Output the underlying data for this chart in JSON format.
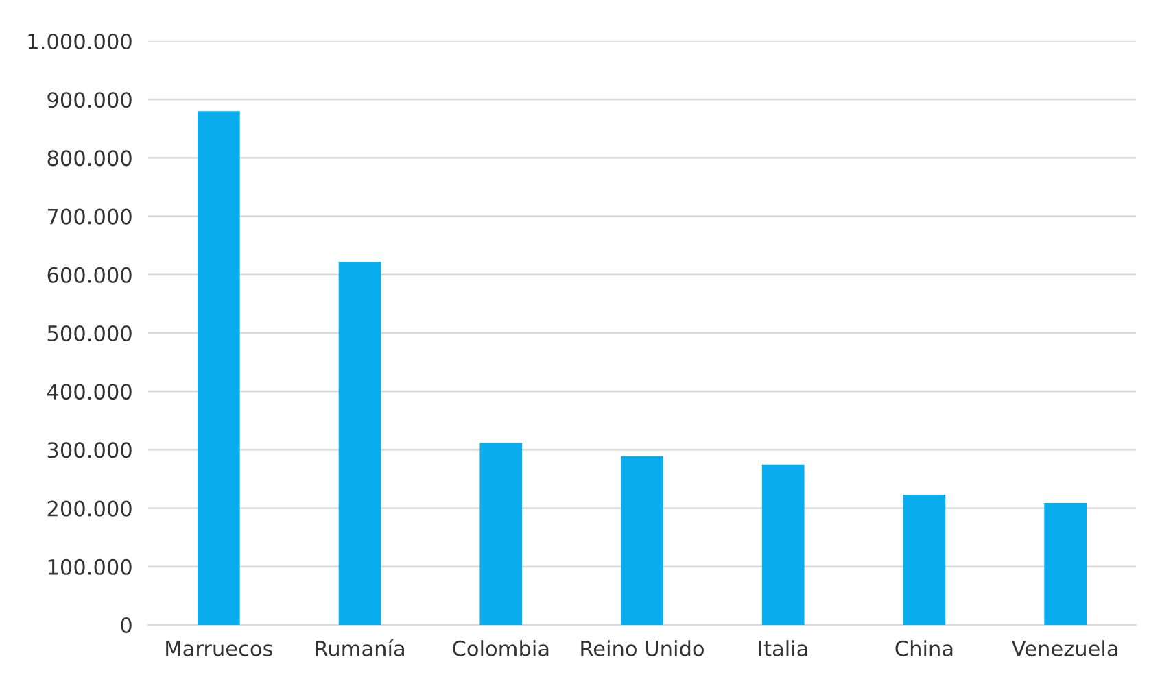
{
  "chart_data": {
    "type": "bar",
    "categories": [
      "Marruecos",
      "Rumanía",
      "Colombia",
      "Reino Unido",
      "Italia",
      "China",
      "Venezuela"
    ],
    "values": [
      880000,
      622000,
      312000,
      289000,
      275000,
      223000,
      209000
    ],
    "color": "#0aaeef",
    "ylim": [
      0,
      1000000
    ],
    "yticks": [
      0,
      {
        "value": 100000,
        "label": "100.000"
      },
      {
        "value": 200000,
        "label": "200.000"
      },
      {
        "value": 300000,
        "label": "300.000"
      },
      {
        "value": 400000,
        "label": "400.000"
      },
      {
        "value": 500000,
        "label": "500.000"
      },
      {
        "value": 600000,
        "label": "600.000"
      },
      {
        "value": 700000,
        "label": "700.000"
      },
      {
        "value": 800000,
        "label": "800.000"
      },
      {
        "value": 900000,
        "label": "900.000"
      },
      {
        "value": 1000000,
        "label": "1.000.000"
      }
    ],
    "grid": "y"
  }
}
